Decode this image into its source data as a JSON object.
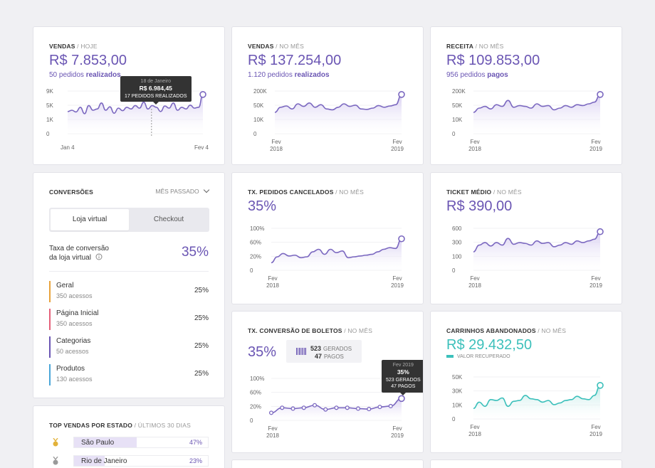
{
  "colors": {
    "accent": "#6a55b3",
    "teal": "#3cc0bb",
    "background": "#f0f0f3"
  },
  "cards": {
    "vendas_hoje": {
      "title": "VENDAS",
      "suffix": "HOJE",
      "value": "R$ 7.853,00",
      "sub_count": "50 pedidos",
      "sub_strong": "realizados",
      "tooltip": {
        "date": "18 de Janeiro",
        "value": "R$ 6.984,45",
        "desc": "17 PEDIDOS REALIZADOS"
      },
      "chart_data": {
        "type": "area",
        "yticks": [
          "9K",
          "5K",
          "1K",
          "0"
        ],
        "xticks": [
          "Jan 4",
          "Fev 4"
        ],
        "values": [
          0.52,
          0.55,
          0.51,
          0.62,
          0.47,
          0.66,
          0.55,
          0.58,
          0.72,
          0.55,
          0.63,
          0.48,
          0.6,
          0.54,
          0.62,
          0.58,
          0.66,
          0.6,
          0.74,
          0.58,
          0.66,
          0.62,
          0.52,
          0.65,
          0.6,
          0.72,
          0.55,
          0.62,
          0.58,
          0.67,
          0.6,
          0.62,
          0.92
        ]
      }
    },
    "vendas_mes": {
      "title": "VENDAS",
      "suffix": "NO MÊS",
      "value": "R$ 137.254,00",
      "sub_count": "1.120 pedidos",
      "sub_strong": "realizados",
      "chart_data": {
        "type": "area",
        "yticks": [
          "200K",
          "50K",
          "10K",
          "0"
        ],
        "xticks": [
          [
            "Fev",
            "2018"
          ],
          [
            "Fev",
            "2019"
          ]
        ],
        "values": [
          0.5,
          0.62,
          0.65,
          0.58,
          0.7,
          0.64,
          0.72,
          0.62,
          0.68,
          0.58,
          0.56,
          0.62,
          0.7,
          0.64,
          0.67,
          0.58,
          0.57,
          0.6,
          0.66,
          0.62,
          0.65,
          0.68,
          0.92
        ]
      }
    },
    "receita": {
      "title": "RECEITA",
      "suffix": "NO MÊS",
      "value": "R$ 109.853,00",
      "sub_count": "956 pedidos",
      "sub_strong": "pagos",
      "chart_data": {
        "type": "area",
        "yticks": [
          "200K",
          "50K",
          "10K",
          "0"
        ],
        "xticks": [
          [
            "Fev",
            "2018"
          ],
          [
            "Fev",
            "2019"
          ]
        ],
        "values": [
          0.5,
          0.6,
          0.64,
          0.58,
          0.68,
          0.64,
          0.78,
          0.62,
          0.66,
          0.64,
          0.6,
          0.7,
          0.64,
          0.66,
          0.56,
          0.6,
          0.66,
          0.62,
          0.68,
          0.66,
          0.7,
          0.74,
          0.92
        ]
      }
    },
    "conversoes": {
      "title": "CONVERSÕES",
      "period": "MÊS PASSADO",
      "tabs": [
        "Loja virtual",
        "Checkout"
      ],
      "rate_label_1": "Taxa de conversão",
      "rate_label_2": "da loja virtual",
      "rate_value": "35%",
      "rows": [
        {
          "name": "Geral",
          "acessos": "350 acessos",
          "pct": "25%",
          "color": "#e8a33c"
        },
        {
          "name": "Página Inicial",
          "acessos": "350 acessos",
          "pct": "25%",
          "color": "#e5607a"
        },
        {
          "name": "Categorias",
          "acessos": "50 acessos",
          "pct": "25%",
          "color": "#6a55b3"
        },
        {
          "name": "Produtos",
          "acessos": "130 acessos",
          "pct": "25%",
          "color": "#4aa6d8"
        }
      ]
    },
    "cancelados": {
      "title": "TX. PEDIDOS CANCELADOS",
      "suffix": "NO MÊS",
      "value": "35%",
      "chart_data": {
        "type": "area",
        "yticks": [
          "100%",
          "60%",
          "20%",
          "0"
        ],
        "xticks": [
          [
            "Fev",
            "2018"
          ],
          [
            "Fev",
            "2019"
          ]
        ],
        "values": [
          0.18,
          0.32,
          0.4,
          0.34,
          0.36,
          0.3,
          0.32,
          0.44,
          0.5,
          0.38,
          0.5,
          0.42,
          0.46,
          0.3,
          0.32,
          0.34,
          0.36,
          0.38,
          0.44,
          0.5,
          0.54,
          0.52,
          0.75
        ]
      }
    },
    "ticket": {
      "title": "TICKET MÉDIO",
      "suffix": "NO MÊS",
      "value": "R$ 390,00",
      "chart_data": {
        "type": "area",
        "yticks": [
          "600",
          "300",
          "100",
          "0"
        ],
        "xticks": [
          [
            "Fev",
            "2018"
          ],
          [
            "Fev",
            "2019"
          ]
        ],
        "values": [
          0.44,
          0.6,
          0.66,
          0.58,
          0.66,
          0.6,
          0.76,
          0.62,
          0.66,
          0.64,
          0.6,
          0.7,
          0.64,
          0.66,
          0.56,
          0.6,
          0.66,
          0.62,
          0.7,
          0.66,
          0.7,
          0.74,
          0.92
        ]
      }
    },
    "boletos": {
      "title": "TX. CONVERSÃO DE BOLETOS",
      "suffix": "NO MÊS",
      "value": "35%",
      "badge": {
        "gerados_n": "523",
        "gerados_l": "GERADOS",
        "pagos_n": "47",
        "pagos_l": "PAGOS"
      },
      "tooltip": {
        "date": "Fev 2019",
        "value": "35%",
        "l1": "523 GERADOS",
        "l2": "47 PAGOS"
      },
      "chart_data": {
        "type": "line",
        "yticks": [
          "100%",
          "60%",
          "20%",
          "0"
        ],
        "xticks": [
          [
            "Fev",
            "2018"
          ],
          [
            "Fev",
            "2019"
          ]
        ],
        "values": [
          0.18,
          0.3,
          0.28,
          0.3,
          0.36,
          0.26,
          0.3,
          0.3,
          0.28,
          0.27,
          0.32,
          0.34,
          0.52
        ]
      }
    },
    "carrinhos": {
      "title": "CARRINHOS ABANDONADOS",
      "suffix": "NO MÊS",
      "value": "R$ 29.432,50",
      "legend": "VALOR RECUPERADO",
      "chart_data": {
        "type": "area",
        "yticks": [
          "50K",
          "30K",
          "10K",
          "0"
        ],
        "xticks": [
          [
            "Fev",
            "2018"
          ],
          [
            "Fev",
            "2019"
          ]
        ],
        "values": [
          0.25,
          0.4,
          0.3,
          0.46,
          0.44,
          0.5,
          0.3,
          0.42,
          0.44,
          0.56,
          0.48,
          0.46,
          0.4,
          0.44,
          0.34,
          0.38,
          0.44,
          0.46,
          0.54,
          0.48,
          0.46,
          0.56,
          0.8
        ]
      }
    },
    "top": {
      "title": "TOP VENDAS POR ESTADO",
      "suffix": "ÚLTIMOS 30 DIAS",
      "rows": [
        {
          "name": "São Paulo",
          "pct": "47%",
          "fill": 0.47,
          "medal": "#e2b23a"
        },
        {
          "name": "Rio de Janeiro",
          "pct": "23%",
          "fill": 0.23,
          "medal": "#9a9a9a"
        }
      ]
    }
  }
}
